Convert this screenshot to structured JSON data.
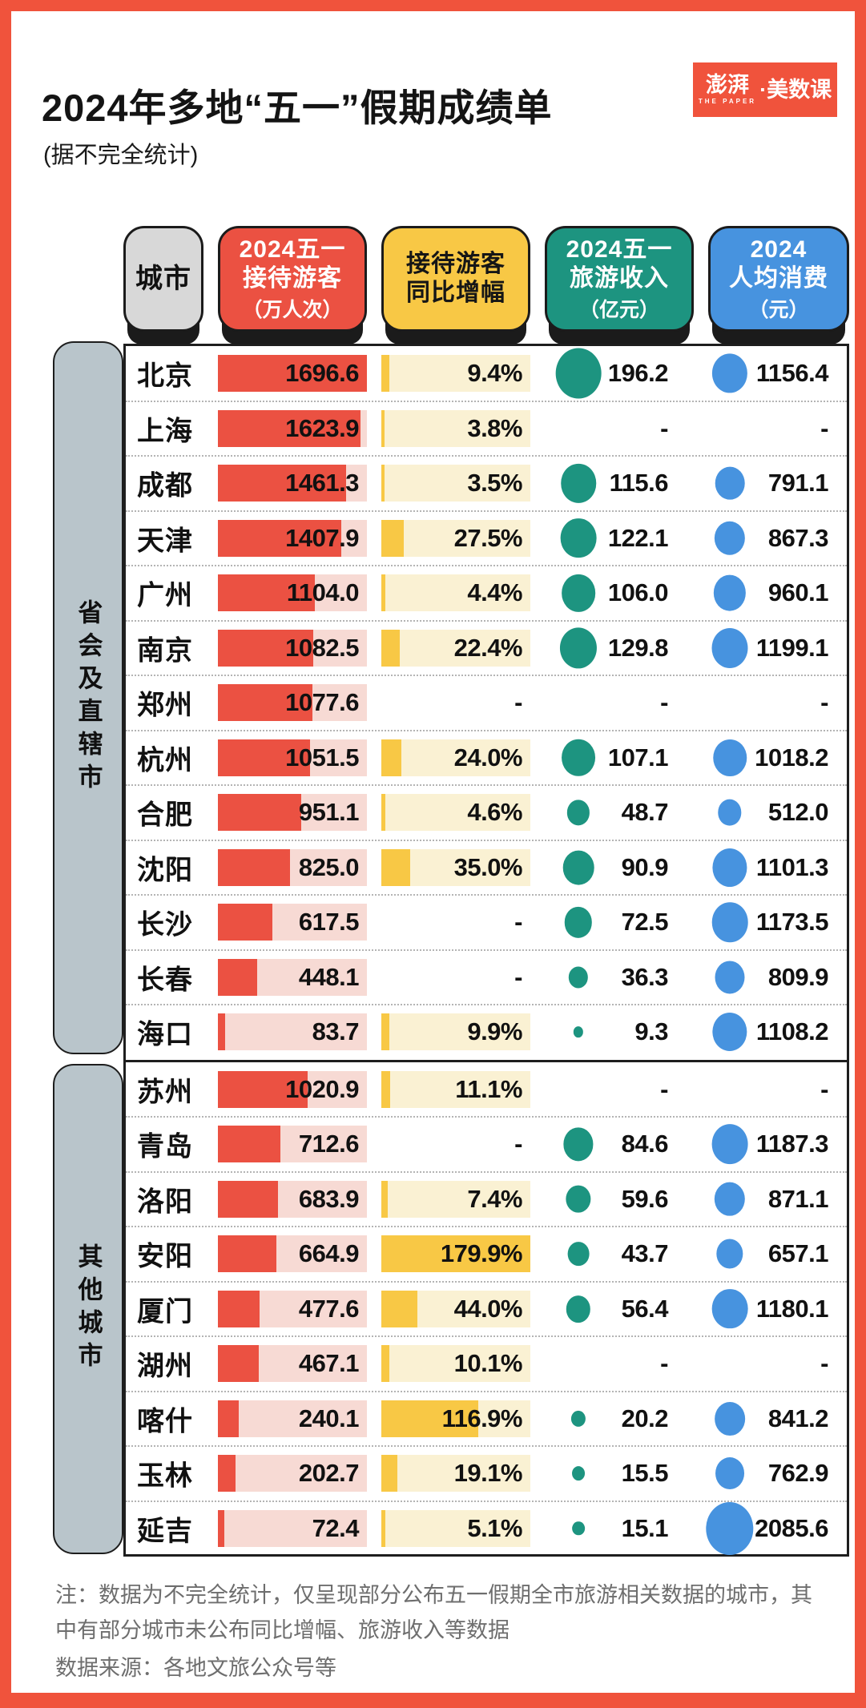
{
  "page": {
    "title": "2024年多地“五一”假期成绩单",
    "subtitle": "(据不完全统计)",
    "logo_main": "澎湃",
    "logo_sub": "THE PAPER",
    "logo_right": "·美数课",
    "note": "注：数据为不完全统计，仅呈现部分公布五一假期全市旅游相关数据的城市，其中有部分城市未公布同比增幅、旅游收入等数据",
    "source": "数据来源：各地文旅公众号等"
  },
  "table": {
    "missing": "-",
    "columns": [
      {
        "id": "city",
        "line1": "城市",
        "line2": "",
        "unit": ""
      },
      {
        "id": "visitors",
        "line1": "2024五一",
        "line2": "接待游客",
        "unit": "（万人次）"
      },
      {
        "id": "growth",
        "line1": "接待游客",
        "line2": "同比增幅",
        "unit": ""
      },
      {
        "id": "revenue",
        "line1": "2024五一",
        "line2": "旅游收入",
        "unit": "（亿元）"
      },
      {
        "id": "spend",
        "line1": "2024",
        "line2": "人均消费",
        "unit": "（元）"
      }
    ]
  },
  "colors": {
    "accent_red": "#F0533C",
    "bar_red": "#EB5142",
    "track_pink": "#F7DAD4",
    "yellow": "#F8C845",
    "track_cream": "#FAF1D3",
    "green": "#1D9480",
    "blue": "#4793DF",
    "header_gray": "#D8D8D8",
    "group_bar": "#B9C5CB",
    "note_gray": "#6e6e6e"
  },
  "chart_data": {
    "type": "table",
    "title": "2024年多地“五一”假期成绩单",
    "subtitle": "(据不完全统计)",
    "columns": [
      "城市",
      "2024五一接待游客(万人次)",
      "接待游客同比增幅",
      "2024五一旅游收入(亿元)",
      "2024人均消费(元)"
    ],
    "encodings": {
      "visitors": "bar",
      "growth": "bar",
      "revenue": "circle-area",
      "spend": "circle-area"
    },
    "missing": "-",
    "groups": [
      {
        "label": "省会及直辖市",
        "rows": [
          [
            "北京",
            1696.6,
            9.4,
            196.2,
            1156.4
          ],
          [
            "上海",
            1623.9,
            3.8,
            null,
            null
          ],
          [
            "成都",
            1461.3,
            3.5,
            115.6,
            791.1
          ],
          [
            "天津",
            1407.9,
            27.5,
            122.1,
            867.3
          ],
          [
            "广州",
            1104.0,
            4.4,
            106.0,
            960.1
          ],
          [
            "南京",
            1082.5,
            22.4,
            129.8,
            1199.1
          ],
          [
            "郑州",
            1077.6,
            null,
            null,
            null
          ],
          [
            "杭州",
            1051.5,
            24.0,
            107.1,
            1018.2
          ],
          [
            "合肥",
            951.1,
            4.6,
            48.7,
            512.0
          ],
          [
            "沈阳",
            825.0,
            35.0,
            90.9,
            1101.3
          ],
          [
            "长沙",
            617.5,
            null,
            72.5,
            1173.5
          ],
          [
            "长春",
            448.1,
            null,
            36.3,
            809.9
          ],
          [
            "海口",
            83.7,
            9.9,
            9.3,
            1108.2
          ]
        ]
      },
      {
        "label": "其他城市",
        "rows": [
          [
            "苏州",
            1020.9,
            11.1,
            null,
            null
          ],
          [
            "青岛",
            712.6,
            null,
            84.6,
            1187.3
          ],
          [
            "洛阳",
            683.9,
            7.4,
            59.6,
            871.1
          ],
          [
            "安阳",
            664.9,
            179.9,
            43.7,
            657.1
          ],
          [
            "厦门",
            477.6,
            44.0,
            56.4,
            1180.1
          ],
          [
            "湖州",
            467.1,
            10.1,
            null,
            null
          ],
          [
            "喀什",
            240.1,
            116.9,
            20.2,
            841.2
          ],
          [
            "玉林",
            202.7,
            19.1,
            15.5,
            762.9
          ],
          [
            "延吉",
            72.4,
            5.1,
            15.1,
            2085.6
          ]
        ]
      }
    ]
  }
}
